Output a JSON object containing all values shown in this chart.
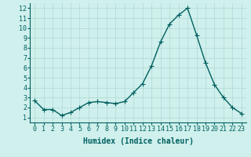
{
  "x": [
    0,
    1,
    2,
    3,
    4,
    5,
    6,
    7,
    8,
    9,
    10,
    11,
    12,
    13,
    14,
    15,
    16,
    17,
    18,
    19,
    20,
    21,
    22,
    23
  ],
  "y": [
    2.7,
    1.8,
    1.8,
    1.2,
    1.5,
    2.0,
    2.5,
    2.6,
    2.5,
    2.4,
    2.6,
    3.5,
    4.4,
    6.2,
    8.6,
    10.4,
    11.3,
    12.0,
    9.3,
    6.5,
    4.3,
    3.0,
    2.0,
    1.4
  ],
  "line_color": "#006060",
  "marker": "+",
  "markersize": 4,
  "linewidth": 1.0,
  "background_color": "#cff0ec",
  "grid_color": "#b0d8d4",
  "xlabel": "Humidex (Indice chaleur)",
  "xlabel_fontsize": 7,
  "tick_fontsize": 6,
  "xlim": [
    -0.5,
    23.5
  ],
  "ylim": [
    0.5,
    12.5
  ],
  "yticks": [
    1,
    2,
    3,
    4,
    5,
    6,
    7,
    8,
    9,
    10,
    11,
    12
  ],
  "xticks": [
    0,
    1,
    2,
    3,
    4,
    5,
    6,
    7,
    8,
    9,
    10,
    11,
    12,
    13,
    14,
    15,
    16,
    17,
    18,
    19,
    20,
    21,
    22,
    23
  ]
}
